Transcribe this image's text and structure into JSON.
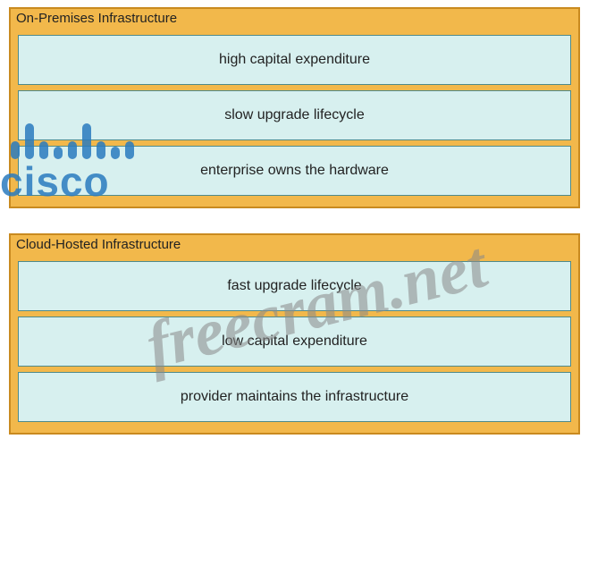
{
  "panels": [
    {
      "title": "On-Premises Infrastructure",
      "items": [
        "high capital expenditure",
        "slow upgrade lifecycle",
        "enterprise owns the hardware"
      ]
    },
    {
      "title": "Cloud-Hosted Infrastructure",
      "items": [
        "fast upgrade lifecycle",
        "low capital expenditure",
        "provider maintains the infrastructure"
      ]
    }
  ],
  "style": {
    "panel_bg": "#f2b84b",
    "panel_border": "#c98a1f",
    "item_bg": "#d7f0ef",
    "item_border": "#4f8a8a",
    "text_color": "#222222",
    "title_fontsize": 15,
    "item_fontsize": 16
  },
  "watermarks": {
    "cisco_text": "cisco",
    "cisco_color": "#2a7bbf",
    "cisco_bar_heights": [
      20,
      40,
      20,
      14,
      20,
      40,
      20,
      14,
      20
    ],
    "freecram_text": "freecram.net",
    "freecram_color": "#8a8a8a"
  }
}
